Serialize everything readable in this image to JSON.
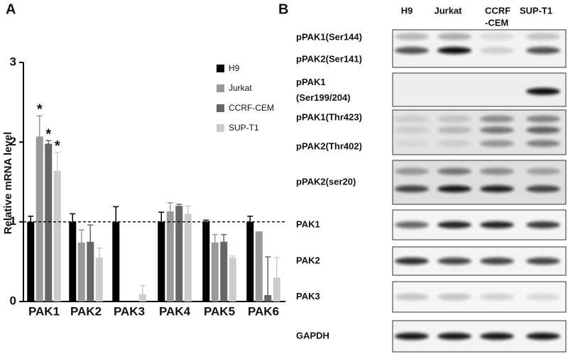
{
  "chart_data": {
    "type": "bar",
    "panel_label": "A",
    "y_label": "Relative mRNA level",
    "categories": [
      "PAK1",
      "PAK2",
      "PAK3",
      "PAK4",
      "PAK5",
      "PAK6"
    ],
    "series": [
      {
        "name": "H9",
        "color": "#000000",
        "values": [
          1.0,
          1.0,
          1.0,
          1.0,
          1.0,
          1.0
        ],
        "errors": [
          0.07,
          0.1,
          0.19,
          0.12,
          0.02,
          0.07
        ]
      },
      {
        "name": "Jurkat",
        "color": "#999999",
        "values": [
          2.07,
          0.74,
          0,
          1.13,
          0.74,
          0.88
        ],
        "errors": [
          0.26,
          0.16,
          0,
          0.11,
          0.1,
          0
        ]
      },
      {
        "name": "CCRF-CEM",
        "color": "#666666",
        "values": [
          1.98,
          0.75,
          0,
          1.2,
          0.75,
          0.08
        ],
        "errors": [
          0.04,
          0.21,
          0,
          0.02,
          0.09,
          0.48
        ]
      },
      {
        "name": "SUP-T1",
        "color": "#cccccc",
        "values": [
          1.64,
          0.55,
          0.09,
          1.1,
          0.55,
          0.3
        ],
        "errors": [
          0.23,
          0.12,
          0.11,
          0.1,
          0.02,
          0.25
        ]
      }
    ],
    "significance": [
      {
        "series": 1,
        "category": 0,
        "label": "*"
      },
      {
        "series": 2,
        "category": 0,
        "label": "*"
      },
      {
        "series": 3,
        "category": 0,
        "label": "*"
      }
    ],
    "reference_line": 1,
    "ylim": [
      0,
      3
    ],
    "yticks": [
      0,
      1,
      2,
      3
    ],
    "legend": "upper right"
  },
  "blot": {
    "panel_label": "B",
    "lanes": [
      [
        "H9"
      ],
      [
        "Jurkat"
      ],
      [
        "CCRF",
        "-CEM"
      ],
      [
        "SUP-T1"
      ]
    ],
    "panels": [
      [
        "pPAK1(Ser144)",
        "pPAK2(Ser141)"
      ],
      [
        "pPAK1",
        "(Ser199/204)"
      ],
      [
        "pPAK1(Thr423)",
        "pPAK2(Thr402)"
      ],
      [
        "pPAK2(ser20)"
      ],
      [
        "PAK1"
      ],
      [
        "PAK2"
      ],
      [
        "PAK3"
      ],
      [
        "GAPDH"
      ]
    ]
  }
}
